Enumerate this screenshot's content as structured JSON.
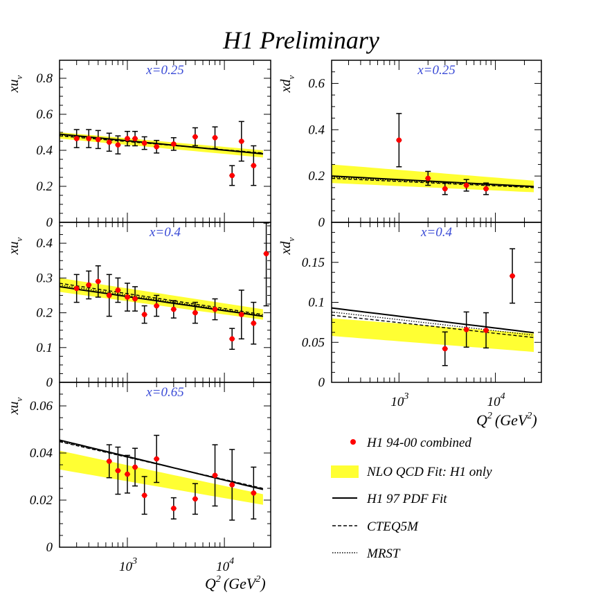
{
  "title": "H1 Preliminary",
  "colors": {
    "band": "#ffff33",
    "point": "#ff0000",
    "label": "#3a4bd6",
    "line": "#000000"
  },
  "legend": {
    "points": "H1 94-00 combined",
    "band": "NLO QCD Fit: H1 only",
    "solid": "H1 97 PDF Fit",
    "dashed": "CTEQ5M",
    "dotted": "MRST"
  },
  "xaxis": {
    "label": "Q",
    "label_sup": "2",
    "unit": "(GeV",
    "unit_sup": "2",
    "unit_close": ")",
    "xlim": [
      200,
      30000
    ],
    "tick_base": "10",
    "tick_exps": [
      "3",
      "4"
    ]
  },
  "chart_data": [
    {
      "id": "xu_025",
      "type": "scatter",
      "ylabel_main": "xu",
      "ylabel_sub": "v",
      "xlabel": "x=0.25",
      "ylim": [
        0,
        0.9
      ],
      "yticks": [
        0,
        0.2,
        0.4,
        0.6,
        0.8
      ],
      "ytick_labels": [
        "0",
        "0.2",
        "0.4",
        "0.6",
        "0.8"
      ],
      "points": {
        "x": [
          300,
          400,
          500,
          650,
          800,
          1000,
          1200,
          1500,
          2000,
          3000,
          5000,
          8000,
          12000,
          15000,
          20000
        ],
        "y": [
          0.465,
          0.465,
          0.46,
          0.445,
          0.43,
          0.465,
          0.465,
          0.44,
          0.42,
          0.435,
          0.475,
          0.47,
          0.26,
          0.45,
          0.315
        ],
        "err": [
          0.05,
          0.05,
          0.05,
          0.05,
          0.05,
          0.04,
          0.04,
          0.035,
          0.035,
          0.035,
          0.05,
          0.06,
          0.055,
          0.11,
          0.11
        ]
      },
      "band": {
        "x": [
          200,
          25000
        ],
        "low": [
          0.465,
          0.36
        ],
        "high": [
          0.5,
          0.4
        ]
      },
      "solid": {
        "x": [
          200,
          25000
        ],
        "y": [
          0.49,
          0.38
        ]
      },
      "dashed": {
        "x": [
          200,
          25000
        ],
        "y": [
          0.48,
          0.385
        ]
      },
      "dotted": {
        "x": [
          200,
          25000
        ],
        "y": [
          0.485,
          0.383
        ]
      }
    },
    {
      "id": "xd_025",
      "type": "scatter",
      "ylabel_main": "xd",
      "ylabel_sub": "v",
      "xlabel": "x=0.25",
      "ylim": [
        0,
        0.7
      ],
      "yticks": [
        0,
        0.2,
        0.4,
        0.6
      ],
      "ytick_labels": [
        "0",
        "0.2",
        "0.4",
        "0.6"
      ],
      "points": {
        "x": [
          1000,
          2000,
          3000,
          5000,
          8000
        ],
        "y": [
          0.355,
          0.19,
          0.145,
          0.16,
          0.145
        ],
        "err": [
          0.115,
          0.03,
          0.025,
          0.025,
          0.025
        ]
      },
      "band": {
        "x": [
          200,
          25000
        ],
        "low": [
          0.17,
          0.13
        ],
        "high": [
          0.25,
          0.18
        ]
      },
      "solid": {
        "x": [
          200,
          25000
        ],
        "y": [
          0.2,
          0.155
        ]
      },
      "dashed": {
        "x": [
          200,
          25000
        ],
        "y": [
          0.19,
          0.15
        ]
      },
      "dotted": {
        "x": [
          200,
          25000
        ],
        "y": [
          0.195,
          0.152
        ]
      }
    },
    {
      "id": "xu_04",
      "type": "scatter",
      "ylabel_main": "xu",
      "ylabel_sub": "v",
      "xlabel": "x=0.4",
      "ylim": [
        0,
        0.46
      ],
      "yticks": [
        0,
        0.1,
        0.2,
        0.3,
        0.4
      ],
      "ytick_labels": [
        "0",
        "0.1",
        "0.2",
        "0.3",
        "0.4"
      ],
      "points": {
        "x": [
          300,
          400,
          500,
          650,
          800,
          1000,
          1200,
          1500,
          2000,
          3000,
          5000,
          8000,
          12000,
          15000,
          20000,
          27000
        ],
        "y": [
          0.27,
          0.28,
          0.29,
          0.25,
          0.265,
          0.245,
          0.24,
          0.195,
          0.22,
          0.21,
          0.2,
          0.21,
          0.125,
          0.195,
          0.17,
          0.37
        ],
        "err": [
          0.04,
          0.04,
          0.045,
          0.06,
          0.035,
          0.04,
          0.035,
          0.025,
          0.03,
          0.025,
          0.03,
          0.03,
          0.03,
          0.07,
          0.06,
          0.15
        ]
      },
      "band": {
        "x": [
          200,
          25000
        ],
        "low": [
          0.26,
          0.18
        ],
        "high": [
          0.3,
          0.21
        ]
      },
      "solid": {
        "x": [
          200,
          25000
        ],
        "y": [
          0.275,
          0.19
        ]
      },
      "dashed": {
        "x": [
          200,
          25000
        ],
        "y": [
          0.285,
          0.195
        ]
      },
      "dotted": {
        "x": [
          200,
          25000
        ],
        "y": [
          0.28,
          0.192
        ]
      }
    },
    {
      "id": "xd_04",
      "type": "scatter",
      "ylabel_main": "xd",
      "ylabel_sub": "v",
      "xlabel": "x=0.4",
      "ylim": [
        0,
        0.2
      ],
      "yticks": [
        0,
        0.05,
        0.1,
        0.15
      ],
      "ytick_labels": [
        "0",
        "0.05",
        "0.1",
        "0.15"
      ],
      "points": {
        "x": [
          3000,
          5000,
          8000,
          15000
        ],
        "y": [
          0.042,
          0.066,
          0.065,
          0.133
        ],
        "err": [
          0.021,
          0.022,
          0.022,
          0.034
        ]
      },
      "band": {
        "x": [
          200,
          25000
        ],
        "low": [
          0.058,
          0.038
        ],
        "high": [
          0.08,
          0.061
        ]
      },
      "solid": {
        "x": [
          200,
          25000
        ],
        "y": [
          0.093,
          0.062
        ]
      },
      "dashed": {
        "x": [
          200,
          25000
        ],
        "y": [
          0.084,
          0.056
        ]
      },
      "dotted": {
        "x": [
          200,
          25000
        ],
        "y": [
          0.088,
          0.059
        ]
      }
    },
    {
      "id": "xu_065",
      "type": "scatter",
      "ylabel_main": "xu",
      "ylabel_sub": "v",
      "xlabel": "x=0.65",
      "ylim": [
        0,
        0.07
      ],
      "yticks": [
        0,
        0.02,
        0.04,
        0.06
      ],
      "ytick_labels": [
        "0",
        "0.02",
        "0.04",
        "0.06"
      ],
      "points": {
        "x": [
          650,
          800,
          1000,
          1200,
          1500,
          2000,
          3000,
          5000,
          8000,
          12000,
          20000
        ],
        "y": [
          0.0365,
          0.0325,
          0.031,
          0.034,
          0.022,
          0.0375,
          0.0165,
          0.0205,
          0.0305,
          0.0265,
          0.023
        ],
        "err": [
          0.007,
          0.01,
          0.008,
          0.008,
          0.008,
          0.01,
          0.0045,
          0.0065,
          0.013,
          0.015,
          0.011
        ]
      },
      "band": {
        "x": [
          200,
          25000
        ],
        "low": [
          0.033,
          0.018
        ],
        "high": [
          0.041,
          0.0225
        ]
      },
      "solid": {
        "x": [
          200,
          25000
        ],
        "y": [
          0.0455,
          0.0245
        ]
      },
      "dashed": {
        "x": [
          200,
          25000
        ],
        "y": [
          0.0448,
          0.025
        ]
      },
      "dotted": {
        "x": [
          200,
          25000
        ],
        "y": [
          0.045,
          0.0248
        ]
      }
    }
  ]
}
